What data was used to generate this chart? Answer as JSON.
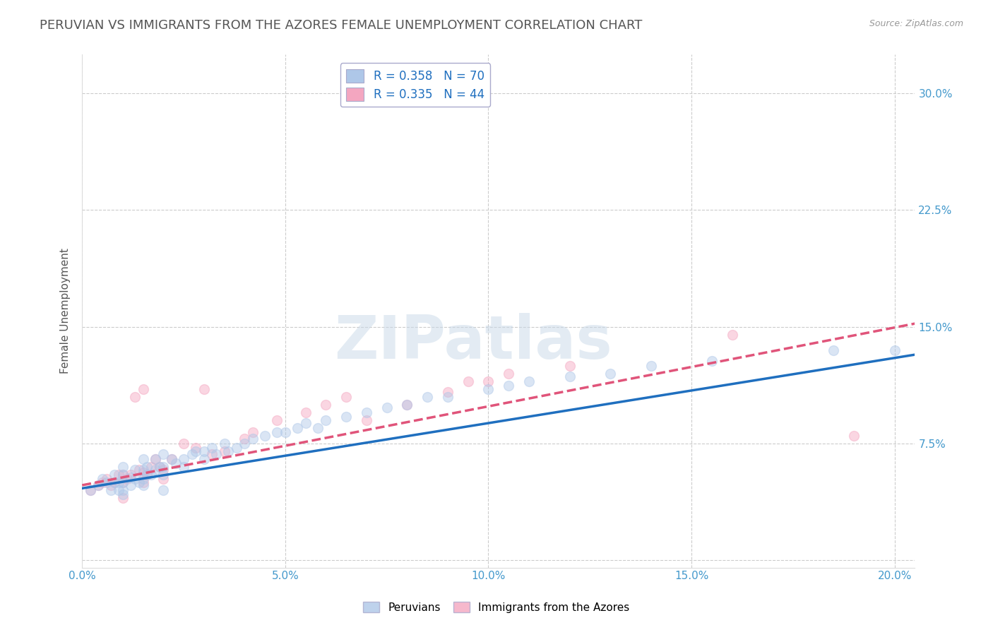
{
  "title": "PERUVIAN VS IMMIGRANTS FROM THE AZORES FEMALE UNEMPLOYMENT CORRELATION CHART",
  "source_text": "Source: ZipAtlas.com",
  "ylabel": "Female Unemployment",
  "watermark": "ZIPatlas",
  "xlim": [
    0.0,
    0.205
  ],
  "ylim": [
    -0.005,
    0.325
  ],
  "xticks": [
    0.0,
    0.05,
    0.1,
    0.15,
    0.2
  ],
  "xticklabels": [
    "0.0%",
    "5.0%",
    "10.0%",
    "15.0%",
    "20.0%"
  ],
  "yticks": [
    0.0,
    0.075,
    0.15,
    0.225,
    0.3
  ],
  "yticklabels": [
    "",
    "7.5%",
    "15.0%",
    "22.5%",
    "30.0%"
  ],
  "legend1_label": "R = 0.358   N = 70",
  "legend2_label": "R = 0.335   N = 44",
  "blue_color": "#aec7e8",
  "pink_color": "#f4a6c0",
  "blue_line_color": "#1f6fbf",
  "pink_line_color": "#e0547a",
  "grid_color": "#cccccc",
  "background_color": "#ffffff",
  "title_color": "#555555",
  "source_color": "#999999",
  "tick_color": "#4499cc",
  "blue_scatter_x": [
    0.002,
    0.004,
    0.005,
    0.006,
    0.007,
    0.008,
    0.008,
    0.009,
    0.009,
    0.01,
    0.01,
    0.01,
    0.01,
    0.01,
    0.012,
    0.012,
    0.013,
    0.013,
    0.014,
    0.015,
    0.015,
    0.015,
    0.015,
    0.016,
    0.016,
    0.017,
    0.018,
    0.018,
    0.019,
    0.02,
    0.02,
    0.02,
    0.02,
    0.022,
    0.023,
    0.025,
    0.025,
    0.027,
    0.028,
    0.03,
    0.03,
    0.032,
    0.033,
    0.035,
    0.036,
    0.038,
    0.04,
    0.042,
    0.045,
    0.048,
    0.05,
    0.053,
    0.055,
    0.058,
    0.06,
    0.065,
    0.07,
    0.075,
    0.08,
    0.085,
    0.09,
    0.1,
    0.105,
    0.11,
    0.12,
    0.13,
    0.14,
    0.155,
    0.185,
    0.2
  ],
  "blue_scatter_y": [
    0.045,
    0.048,
    0.052,
    0.05,
    0.045,
    0.05,
    0.055,
    0.05,
    0.045,
    0.045,
    0.05,
    0.055,
    0.06,
    0.042,
    0.048,
    0.053,
    0.052,
    0.058,
    0.05,
    0.048,
    0.052,
    0.058,
    0.065,
    0.055,
    0.06,
    0.055,
    0.058,
    0.065,
    0.06,
    0.055,
    0.06,
    0.068,
    0.045,
    0.065,
    0.062,
    0.065,
    0.06,
    0.068,
    0.07,
    0.065,
    0.07,
    0.072,
    0.068,
    0.075,
    0.07,
    0.072,
    0.075,
    0.078,
    0.08,
    0.082,
    0.082,
    0.085,
    0.088,
    0.085,
    0.09,
    0.092,
    0.095,
    0.098,
    0.1,
    0.105,
    0.105,
    0.11,
    0.112,
    0.115,
    0.118,
    0.12,
    0.125,
    0.128,
    0.135,
    0.135
  ],
  "pink_scatter_x": [
    0.002,
    0.004,
    0.005,
    0.006,
    0.007,
    0.008,
    0.009,
    0.01,
    0.01,
    0.01,
    0.011,
    0.012,
    0.013,
    0.014,
    0.015,
    0.015,
    0.015,
    0.016,
    0.017,
    0.018,
    0.019,
    0.02,
    0.02,
    0.022,
    0.025,
    0.028,
    0.03,
    0.032,
    0.035,
    0.04,
    0.042,
    0.048,
    0.055,
    0.06,
    0.065,
    0.07,
    0.08,
    0.09,
    0.095,
    0.1,
    0.105,
    0.12,
    0.16,
    0.19
  ],
  "pink_scatter_y": [
    0.045,
    0.048,
    0.05,
    0.052,
    0.048,
    0.05,
    0.055,
    0.04,
    0.05,
    0.055,
    0.052,
    0.055,
    0.105,
    0.058,
    0.05,
    0.056,
    0.11,
    0.055,
    0.06,
    0.065,
    0.06,
    0.052,
    0.058,
    0.065,
    0.075,
    0.072,
    0.11,
    0.068,
    0.07,
    0.078,
    0.082,
    0.09,
    0.095,
    0.1,
    0.105,
    0.09,
    0.1,
    0.108,
    0.115,
    0.115,
    0.12,
    0.125,
    0.145,
    0.08
  ],
  "blue_trend_x": [
    0.0,
    0.205
  ],
  "blue_trend_y": [
    0.046,
    0.132
  ],
  "pink_trend_x": [
    0.0,
    0.205
  ],
  "pink_trend_y": [
    0.048,
    0.152
  ],
  "bottom_legend_labels": [
    "Peruvians",
    "Immigrants from the Azores"
  ],
  "title_fontsize": 13,
  "axis_fontsize": 11,
  "tick_fontsize": 11,
  "scatter_size": 100,
  "scatter_alpha": 0.45,
  "line_width": 2.5
}
